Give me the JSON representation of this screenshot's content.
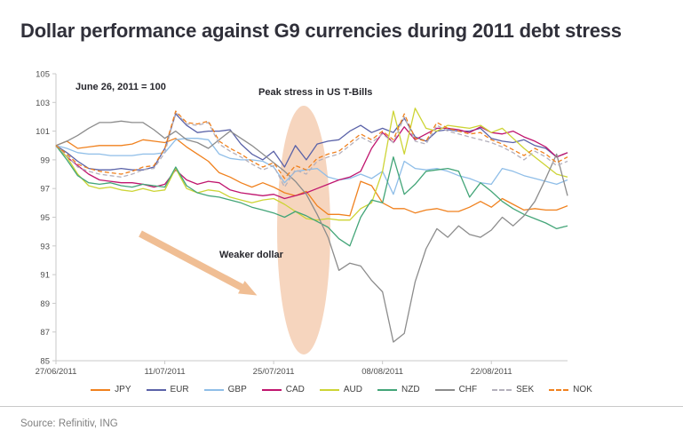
{
  "page": {
    "title": "Dollar performance against G9 currencies during 2011 debt stress",
    "source": "Source: Refinitiv, ING"
  },
  "chart_data": {
    "type": "line",
    "title": "Dollar performance against G9 currencies during 2011 debt stress",
    "index_note": "June 26, 2011 = 100",
    "annotations": {
      "peak_stress": "Peak stress in US T-Bills",
      "weaker_dollar": "Weaker dollar"
    },
    "legend_position": "bottom",
    "grid": false,
    "y_axis": {
      "min": 85,
      "max": 105,
      "tick_step": 2,
      "ticks": [
        85,
        87,
        89,
        91,
        93,
        95,
        97,
        99,
        101,
        103,
        105
      ]
    },
    "x_axis": {
      "n_points": 48,
      "tick_indices": [
        0,
        10,
        20,
        30,
        40
      ],
      "tick_labels": [
        "27/06/2011",
        "11/07/2011",
        "25/07/2011",
        "08/08/2011",
        "22/08/2011"
      ]
    },
    "highlight": {
      "ellipse_color": "#f6d5be",
      "arrow_color": "#f0be94"
    },
    "series": [
      {
        "name": "JPY",
        "color": "#f0811e",
        "dash": false,
        "values": [
          100,
          100.3,
          99.8,
          99.9,
          100.0,
          100.0,
          100.0,
          100.1,
          100.4,
          100.3,
          100.2,
          100.5,
          99.9,
          99.4,
          98.9,
          98.1,
          97.8,
          97.4,
          97.1,
          97.4,
          97.1,
          96.7,
          96.5,
          96.8,
          95.8,
          95.2,
          95.2,
          95.1,
          97.5,
          97.2,
          96.0,
          95.6,
          95.6,
          95.3,
          95.5,
          95.6,
          95.4,
          95.4,
          95.7,
          96.1,
          95.7,
          96.3,
          95.9,
          95.5,
          95.6,
          95.5,
          95.5,
          95.8
        ]
      },
      {
        "name": "EUR",
        "color": "#5a62a8",
        "dash": false,
        "values": [
          100,
          99.5,
          98.9,
          98.4,
          98.3,
          98.3,
          98.4,
          98.3,
          98.3,
          98.5,
          99.8,
          102.2,
          101.4,
          100.9,
          101.0,
          101.0,
          101.1,
          100.1,
          99.4,
          99.0,
          99.6,
          98.5,
          100.0,
          99.0,
          100.1,
          100.3,
          100.4,
          101.0,
          101.4,
          100.9,
          101.2,
          100.9,
          101.9,
          100.6,
          100.3,
          101.0,
          101.1,
          101.0,
          101.0,
          101.2,
          100.5,
          100.3,
          100.2,
          100.4,
          100.0,
          99.8,
          99.2,
          99.5
        ]
      },
      {
        "name": "GBP",
        "color": "#8fbee8",
        "dash": false,
        "values": [
          100,
          99.8,
          99.5,
          99.4,
          99.4,
          99.3,
          99.3,
          99.3,
          99.4,
          99.4,
          99.5,
          100.4,
          100.5,
          100.5,
          100.4,
          99.4,
          99.1,
          99.0,
          99.0,
          98.9,
          98.5,
          97.4,
          98.2,
          98.3,
          98.4,
          97.8,
          97.6,
          97.7,
          98.0,
          97.7,
          98.2,
          96.6,
          98.9,
          98.4,
          98.3,
          98.4,
          98.2,
          97.9,
          97.7,
          97.4,
          97.3,
          98.4,
          98.2,
          97.9,
          97.7,
          97.5,
          97.3,
          97.6
        ]
      },
      {
        "name": "CAD",
        "color": "#c0156e",
        "dash": false,
        "values": [
          100,
          99.2,
          98.6,
          98.0,
          97.6,
          97.5,
          97.4,
          97.4,
          97.3,
          97.1,
          97.3,
          98.3,
          97.6,
          97.3,
          97.5,
          97.4,
          96.9,
          96.7,
          96.6,
          96.5,
          96.6,
          96.3,
          96.5,
          96.7,
          97.0,
          97.3,
          97.6,
          97.8,
          98.2,
          99.8,
          100.9,
          100.2,
          101.3,
          100.4,
          100.8,
          101.2,
          101.2,
          101.1,
          100.9,
          101.3,
          100.9,
          100.8,
          101.0,
          100.6,
          100.3,
          99.9,
          99.2,
          99.5
        ]
      },
      {
        "name": "AUD",
        "color": "#cdd435",
        "dash": false,
        "values": [
          100,
          99.2,
          98.0,
          97.2,
          97.0,
          97.1,
          96.9,
          96.8,
          97.0,
          96.8,
          96.9,
          98.4,
          97.0,
          96.7,
          96.9,
          96.8,
          96.4,
          96.2,
          96.0,
          96.2,
          96.3,
          95.9,
          95.4,
          94.9,
          94.8,
          94.9,
          94.8,
          94.8,
          95.6,
          96.0,
          98.2,
          102.4,
          99.4,
          102.6,
          101.2,
          101.0,
          101.4,
          101.3,
          101.2,
          101.4,
          100.9,
          101.2,
          100.5,
          99.8,
          99.2,
          98.6,
          98.0,
          97.8
        ]
      },
      {
        "name": "NZD",
        "color": "#43a578",
        "dash": false,
        "values": [
          100,
          99.0,
          97.9,
          97.4,
          97.3,
          97.4,
          97.2,
          97.1,
          97.3,
          97.2,
          97.1,
          98.5,
          97.2,
          96.7,
          96.5,
          96.4,
          96.2,
          96.0,
          95.7,
          95.5,
          95.3,
          95.0,
          95.4,
          95.1,
          94.7,
          94.3,
          93.5,
          93.0,
          95.0,
          96.2,
          96.0,
          99.2,
          96.6,
          97.3,
          98.2,
          98.3,
          98.4,
          98.2,
          96.4,
          97.4,
          96.8,
          96.1,
          95.6,
          95.2,
          94.9,
          94.6,
          94.2,
          94.4
        ]
      },
      {
        "name": "CHF",
        "color": "#8c8c8c",
        "dash": false,
        "values": [
          100,
          100.3,
          100.7,
          101.2,
          101.6,
          101.6,
          101.7,
          101.6,
          101.6,
          101.1,
          100.5,
          101.0,
          100.4,
          100.2,
          99.8,
          100.4,
          101.0,
          100.5,
          100.0,
          99.4,
          98.8,
          98.2,
          97.5,
          96.6,
          95.2,
          93.6,
          91.3,
          91.8,
          91.6,
          90.6,
          89.8,
          86.3,
          86.9,
          90.5,
          92.8,
          94.2,
          93.6,
          94.4,
          93.8,
          93.6,
          94.1,
          95.0,
          94.4,
          95.1,
          96.1,
          97.7,
          99.4,
          96.5
        ]
      },
      {
        "name": "SEK",
        "color": "#b4b0bc",
        "dash": true,
        "values": [
          100,
          99.3,
          98.5,
          98.2,
          98.0,
          97.9,
          97.8,
          98.0,
          98.3,
          98.4,
          99.5,
          102.3,
          101.5,
          101.4,
          101.6,
          100.1,
          99.6,
          99.2,
          98.7,
          98.3,
          98.6,
          97.1,
          98.3,
          98.0,
          98.9,
          99.2,
          99.4,
          100.0,
          100.6,
          100.2,
          100.8,
          100.2,
          102.0,
          100.3,
          100.1,
          101.4,
          101.0,
          100.8,
          100.6,
          100.4,
          100.2,
          99.9,
          99.5,
          99.0,
          99.6,
          99.2,
          98.6,
          98.9
        ]
      },
      {
        "name": "NOK",
        "color": "#f0811e",
        "dash": true,
        "values": [
          100,
          99.4,
          98.7,
          98.4,
          98.2,
          98.1,
          98.0,
          98.2,
          98.5,
          98.6,
          99.8,
          102.4,
          101.6,
          101.5,
          101.7,
          100.3,
          99.8,
          99.4,
          98.9,
          98.5,
          98.8,
          97.7,
          98.6,
          98.3,
          99.1,
          99.4,
          99.6,
          100.2,
          100.8,
          100.4,
          101.0,
          100.4,
          102.2,
          100.5,
          100.3,
          101.6,
          101.2,
          101.0,
          100.8,
          100.9,
          100.4,
          100.1,
          99.7,
          99.3,
          99.8,
          99.4,
          98.8,
          99.2
        ]
      }
    ]
  }
}
